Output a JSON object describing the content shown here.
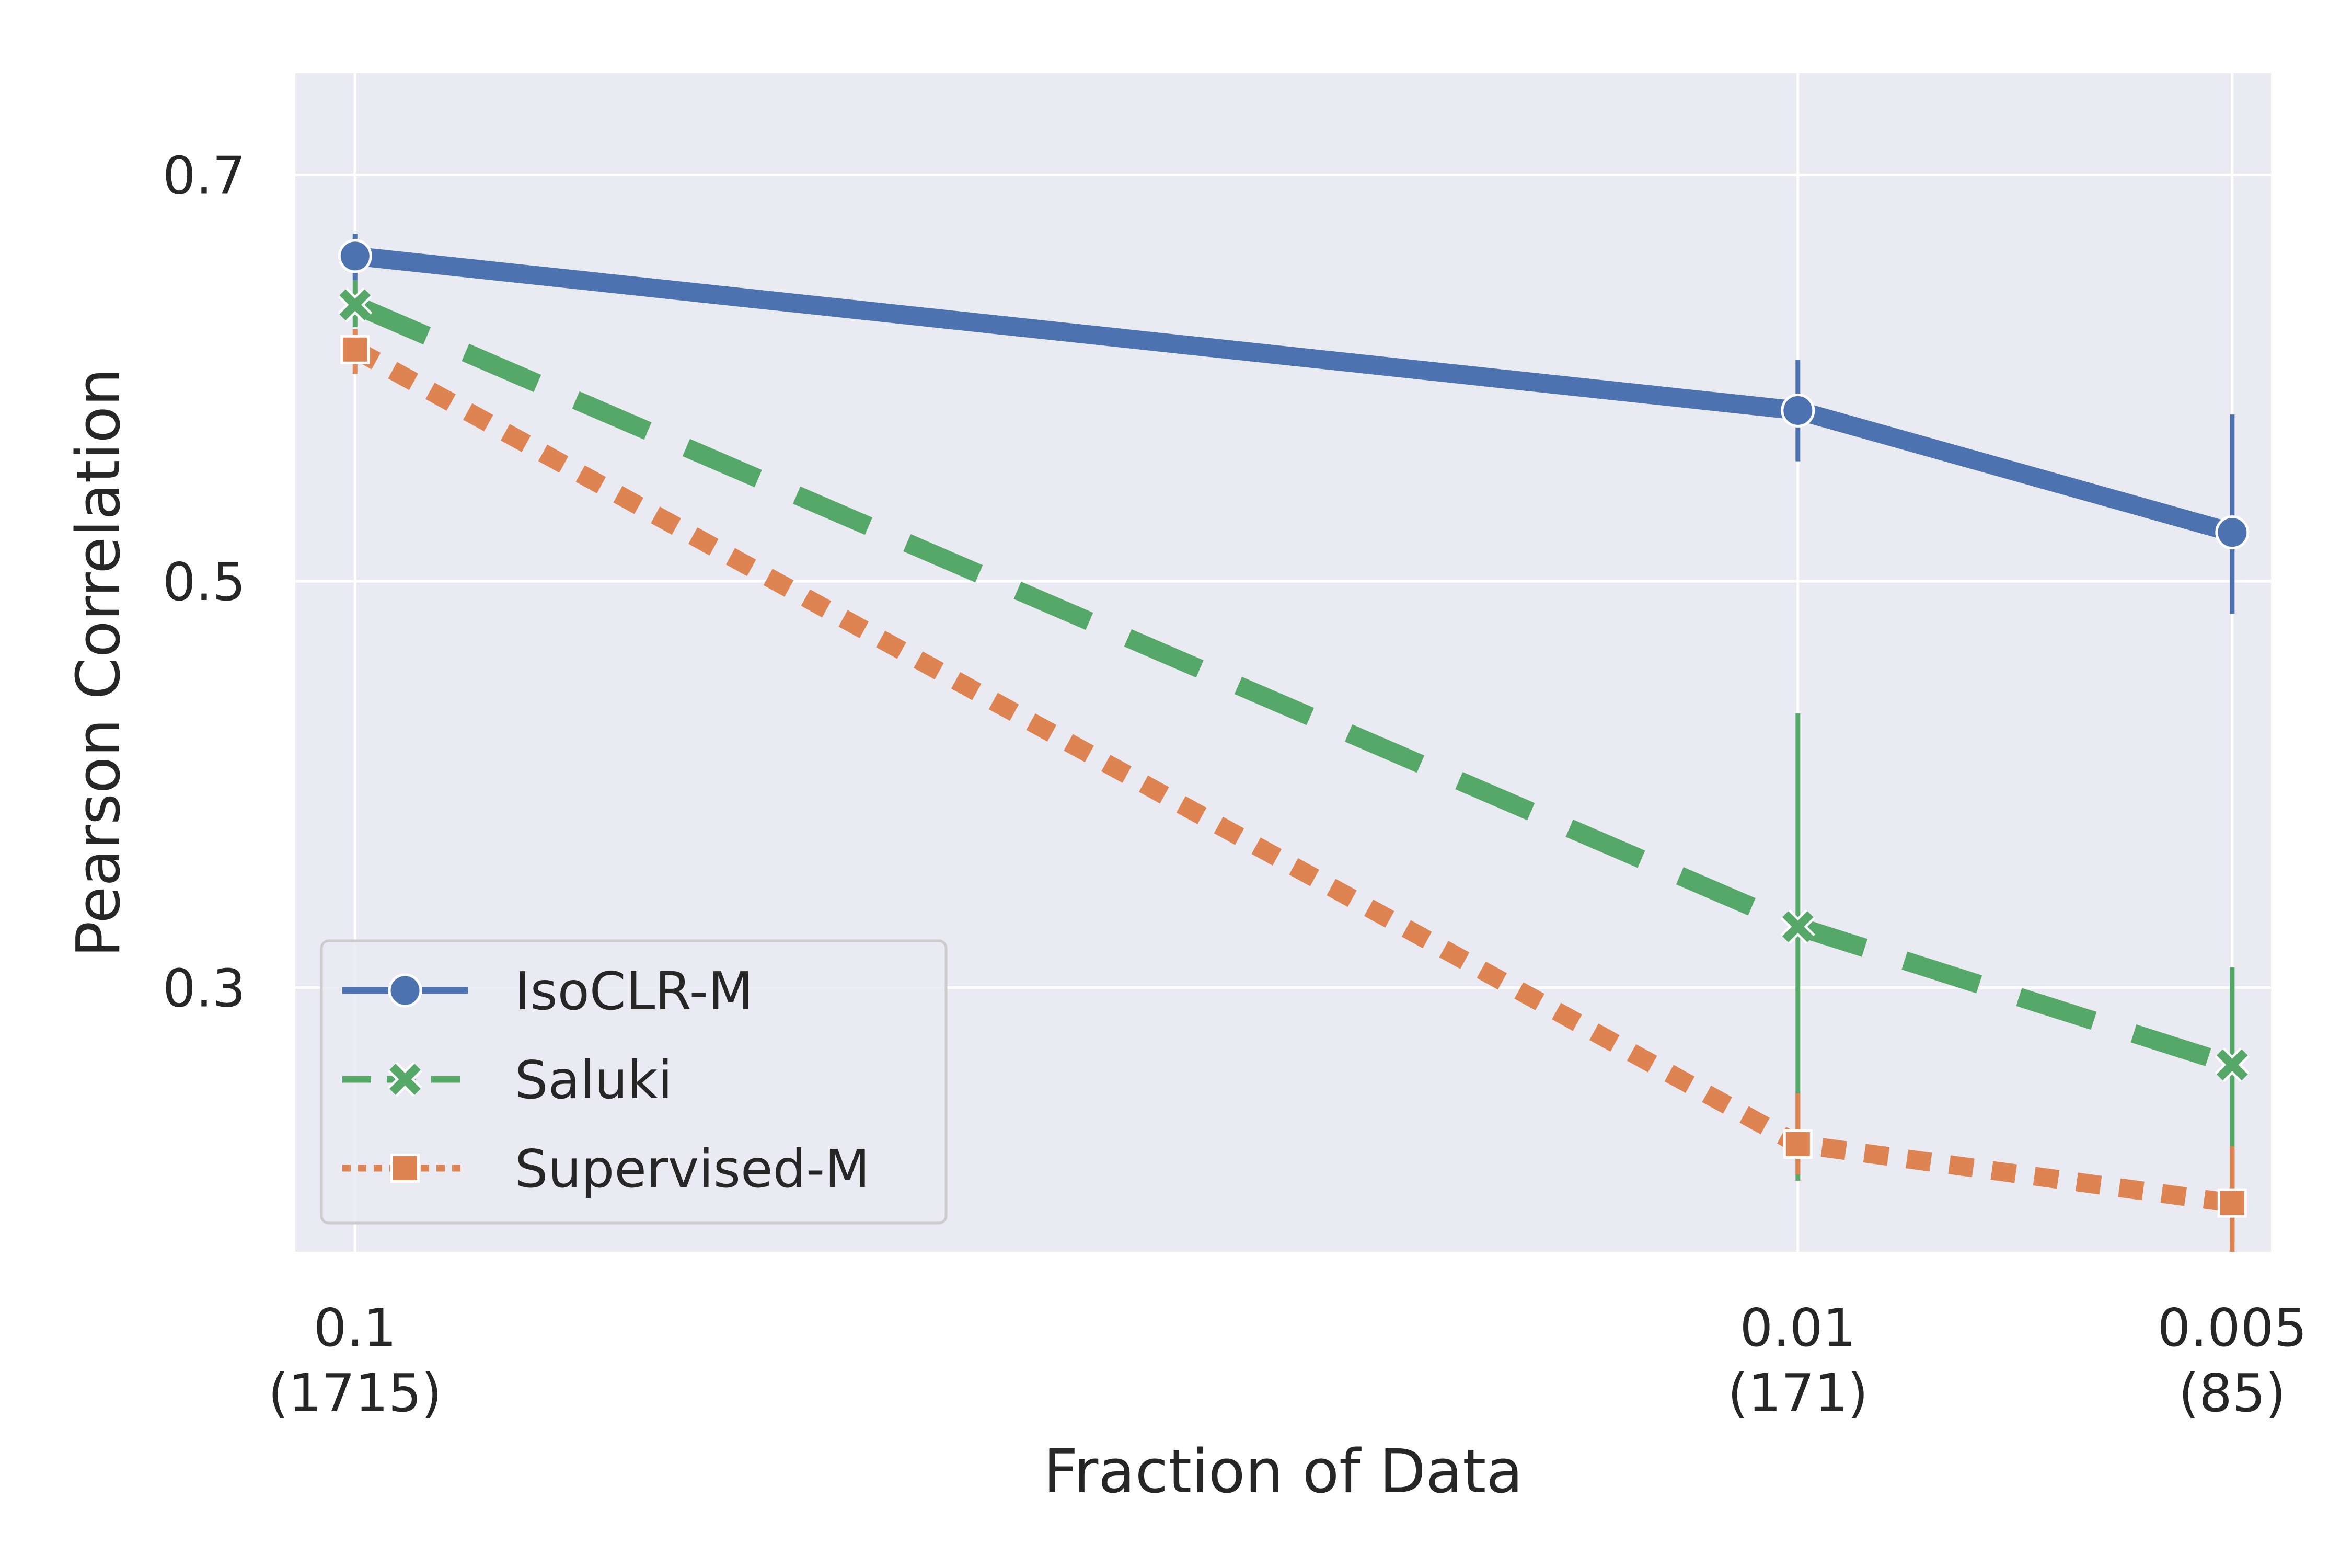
{
  "chart_data": {
    "type": "line",
    "title": "",
    "xlabel": "Fraction of Data",
    "ylabel": "Pearson Correlation",
    "x_scale": "log",
    "x_axis_reversed": true,
    "xlim": [
      0.11,
      0.0047
    ],
    "ylim": [
      0.17,
      0.75
    ],
    "x": [
      0.1,
      0.01,
      0.005
    ],
    "x_tick_labels": [
      {
        "value": 0.1,
        "line1": "0.1",
        "line2": "(1715)"
      },
      {
        "value": 0.01,
        "line1": "0.01",
        "line2": "(171)"
      },
      {
        "value": 0.005,
        "line1": "0.005",
        "line2": "(85)"
      }
    ],
    "y_ticks": [
      0.3,
      0.5,
      0.7
    ],
    "y_tick_labels": [
      "0.3",
      "0.5",
      "0.7"
    ],
    "grid": true,
    "legend_position": "lower-left",
    "series": [
      {
        "name": "IsoCLR-M",
        "color": "#4c72b0",
        "line_style": "solid",
        "marker": "circle",
        "values": [
          0.66,
          0.584,
          0.524
        ],
        "ci_low": [
          0.648,
          0.559,
          0.484
        ],
        "ci_high": [
          0.671,
          0.609,
          0.582
        ]
      },
      {
        "name": "Saluki",
        "color": "#55a868",
        "line_style": "dashed",
        "marker": "x",
        "values": [
          0.636,
          0.33,
          0.262
        ],
        "ci_low": [
          0.625,
          0.205,
          0.175
        ],
        "ci_high": [
          0.648,
          0.435,
          0.31
        ]
      },
      {
        "name": "Supervised-M",
        "color": "#dd8452",
        "line_style": "dotted",
        "marker": "square",
        "values": [
          0.614,
          0.223,
          0.194
        ],
        "ci_low": [
          0.602,
          0.208,
          0.17
        ],
        "ci_high": [
          0.624,
          0.248,
          0.222
        ]
      }
    ]
  }
}
